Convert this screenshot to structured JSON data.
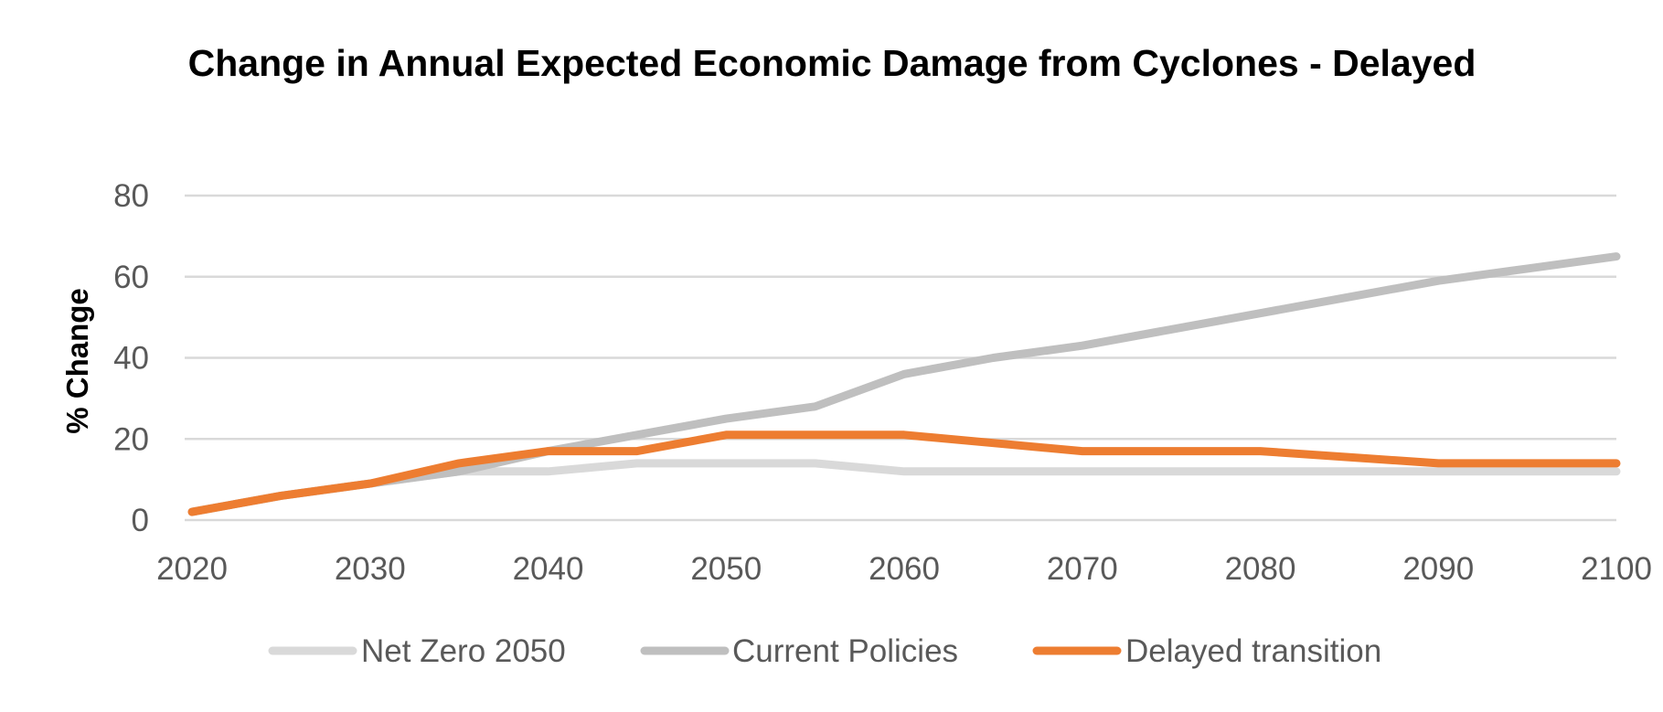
{
  "chart_data": {
    "type": "line",
    "title": "Change in Annual Expected Economic Damage from Cyclones - Delayed",
    "xlabel": "",
    "ylabel": "% Change",
    "x": [
      2020,
      2025,
      2030,
      2035,
      2040,
      2045,
      2050,
      2055,
      2060,
      2065,
      2070,
      2075,
      2080,
      2085,
      2090,
      2095,
      2100
    ],
    "x_ticks": [
      "2020",
      "2030",
      "2040",
      "2050",
      "2060",
      "2070",
      "2080",
      "2090",
      "2100"
    ],
    "y_ticks": [
      "0",
      "20",
      "40",
      "60",
      "80"
    ],
    "xlim": [
      2020,
      2100
    ],
    "ylim": [
      0,
      80
    ],
    "grid": "horizontal",
    "legend_position": "bottom",
    "series": [
      {
        "name": "Net Zero 2050",
        "color": "#d9d9d9",
        "values": [
          2,
          6,
          9,
          12,
          12,
          14,
          14,
          14,
          12,
          12,
          12,
          12,
          12,
          12,
          12,
          12,
          12
        ]
      },
      {
        "name": "Current Policies",
        "color": "#bfbfbf",
        "values": [
          2,
          6,
          9,
          12,
          17,
          21,
          25,
          28,
          36,
          40,
          43,
          47,
          51,
          55,
          59,
          62,
          65
        ]
      },
      {
        "name": "Delayed transition",
        "color": "#ed7d31",
        "values": [
          2,
          6,
          9,
          14,
          17,
          17,
          21,
          21,
          21,
          19,
          17,
          17,
          17,
          15.5,
          14,
          14,
          14
        ]
      }
    ]
  }
}
